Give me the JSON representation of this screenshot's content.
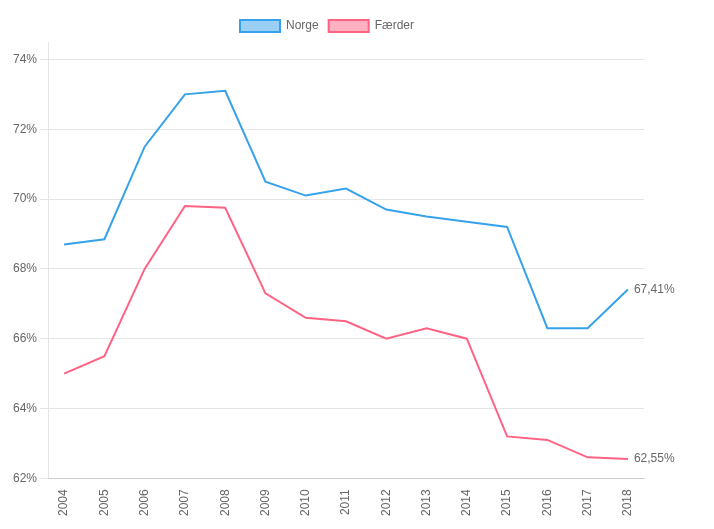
{
  "chart_data": {
    "type": "line",
    "x": [
      2004,
      2005,
      2006,
      2007,
      2008,
      2009,
      2010,
      2011,
      2012,
      2013,
      2014,
      2015,
      2016,
      2017,
      2018
    ],
    "series": [
      {
        "name": "Norge",
        "values": [
          68.7,
          68.85,
          71.5,
          73.0,
          73.1,
          70.5,
          70.1,
          70.3,
          69.7,
          69.5,
          69.35,
          69.2,
          66.3,
          66.3,
          67.41
        ]
      },
      {
        "name": "Færder",
        "values": [
          65.0,
          65.5,
          68.0,
          69.8,
          69.75,
          67.3,
          66.6,
          66.5,
          66.0,
          66.3,
          66.0,
          63.2,
          63.1,
          62.6,
          62.55
        ]
      }
    ],
    "annotations": [
      {
        "text": "67,41%",
        "x": 2018,
        "y": 67.41
      },
      {
        "text": "62,55%",
        "x": 2018,
        "y": 62.55
      }
    ],
    "xlim": [
      2003.6,
      2018.4
    ],
    "xticks": [
      2004,
      2005,
      2006,
      2007,
      2008,
      2009,
      2010,
      2011,
      2012,
      2013,
      2014,
      2015,
      2016,
      2017,
      2018
    ],
    "ylim": [
      62,
      74.5
    ],
    "yticks": [
      {
        "value": 62,
        "label": "62%"
      },
      {
        "value": 64,
        "label": "64%"
      },
      {
        "value": 66,
        "label": "66%"
      },
      {
        "value": 68,
        "label": "68%"
      },
      {
        "value": 70,
        "label": "70%"
      },
      {
        "value": 72,
        "label": "72%"
      },
      {
        "value": 74,
        "label": "74%"
      }
    ],
    "grid": true,
    "legend": "top"
  }
}
